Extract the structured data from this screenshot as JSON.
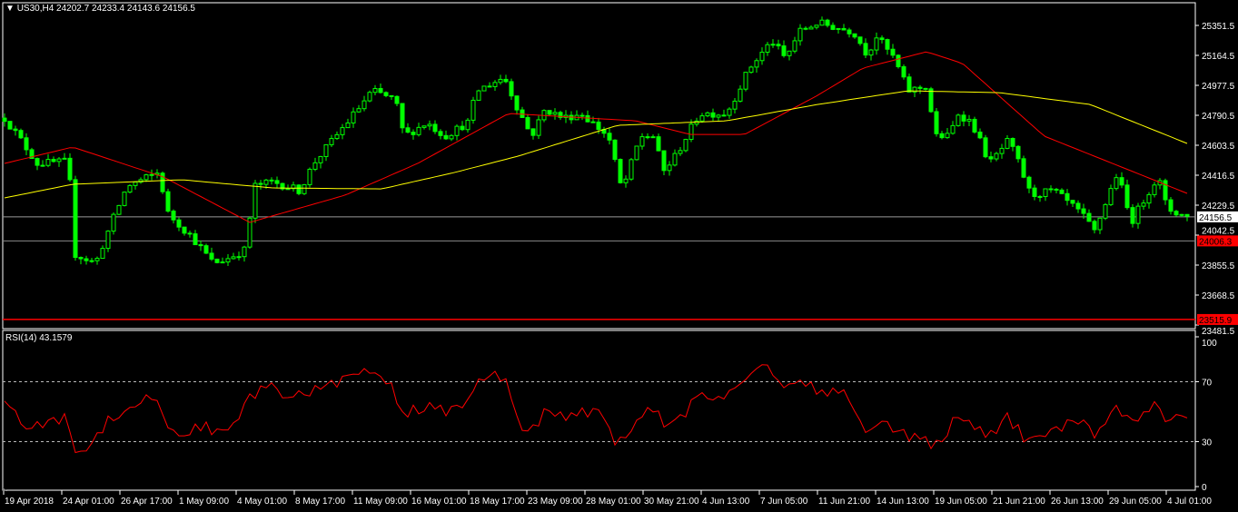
{
  "header": {
    "symbol": "US30,H4",
    "ohlc": "24202.7 24233.4 24143.6 24156.5"
  },
  "rsi_header": {
    "label": "RSI(14) 43.1579"
  },
  "colors": {
    "bull": "#00ff00",
    "bear": "#00ff00",
    "ma_fast": "#ff0000",
    "ma_slow": "#ffff00",
    "rsi": "#ff0000",
    "background": "#000000",
    "grid": "#ffffff"
  },
  "chart_data": [
    {
      "type": "candlestick",
      "symbol": "US30",
      "timeframe": "H4",
      "ylim": [
        23481.5,
        25351.5
      ],
      "y_ticks": [
        "25351.5",
        "25164.5",
        "24977.5",
        "24790.5",
        "24603.5",
        "24416.5",
        "24229.5",
        "24042.5",
        "23855.5",
        "23668.5",
        "23481.5"
      ],
      "x_ticks": [
        "19 Apr 2018",
        "24 Apr 01:00",
        "26 Apr 17:00",
        "1 May 09:00",
        "4 May 01:00",
        "8 May 17:00",
        "11 May 09:00",
        "16 May 01:00",
        "18 May 17:00",
        "23 May 09:00",
        "28 May 01:00",
        "30 May 21:00",
        "4 Jun 13:00",
        "7 Jun 05:00",
        "11 Jun 21:00",
        "14 Jun 13:00",
        "19 Jun 05:00",
        "21 Jun 21:00",
        "26 Jun 13:00",
        "29 Jun 05:00",
        "4 Jul 01:00"
      ],
      "last_price": {
        "value": 24156.5,
        "label": "24156.5"
      },
      "levels": [
        {
          "value": 24006.3,
          "label": "24006.3",
          "color": "#ff0000"
        },
        {
          "value": 23515.9,
          "label": "23515.9",
          "color": "#ff0000"
        }
      ],
      "close_path": [
        [
          0,
          24773
        ],
        [
          2.5,
          24660
        ],
        [
          6,
          24490
        ],
        [
          11.7,
          24501
        ],
        [
          13,
          23923
        ],
        [
          16.7,
          23867
        ],
        [
          20,
          24150
        ],
        [
          22.5,
          24348
        ],
        [
          28.3,
          24433
        ],
        [
          30,
          24178
        ],
        [
          34.2,
          24037
        ],
        [
          38.3,
          23867
        ],
        [
          40.8,
          23895
        ],
        [
          44.2,
          23952
        ],
        [
          45.8,
          24348
        ],
        [
          49.2,
          24376
        ],
        [
          54.2,
          24320
        ],
        [
          56.7,
          24490
        ],
        [
          60.8,
          24660
        ],
        [
          64.2,
          24802
        ],
        [
          67.5,
          24943
        ],
        [
          71.7,
          24887
        ],
        [
          73.3,
          24660
        ],
        [
          77.5,
          24745
        ],
        [
          80.8,
          24660
        ],
        [
          85,
          24745
        ],
        [
          86.7,
          24943
        ],
        [
          91.7,
          25029
        ],
        [
          94.2,
          24830
        ],
        [
          96.7,
          24660
        ],
        [
          99.2,
          24830
        ],
        [
          102.5,
          24773
        ],
        [
          105.8,
          24802
        ],
        [
          110.8,
          24660
        ],
        [
          113.3,
          24320
        ],
        [
          116.7,
          24660
        ],
        [
          119.2,
          24660
        ],
        [
          120.8,
          24433
        ],
        [
          123.3,
          24547
        ],
        [
          127.5,
          24802
        ],
        [
          132.5,
          24802
        ],
        [
          136.7,
          25085
        ],
        [
          140.8,
          25255
        ],
        [
          143.3,
          25142
        ],
        [
          145.8,
          25312
        ],
        [
          149.2,
          25368
        ],
        [
          155.8,
          25312
        ],
        [
          158.3,
          25170
        ],
        [
          160,
          25283
        ],
        [
          163.3,
          25142
        ],
        [
          165.8,
          24943
        ],
        [
          169.2,
          24972
        ],
        [
          170.8,
          24660
        ],
        [
          173.3,
          24660
        ],
        [
          175,
          24802
        ],
        [
          177.5,
          24745
        ],
        [
          180.8,
          24490
        ],
        [
          184.2,
          24632
        ],
        [
          185.8,
          24518
        ],
        [
          188.3,
          24292
        ],
        [
          192.5,
          24320
        ],
        [
          197.5,
          24178
        ],
        [
          200,
          24065
        ],
        [
          204.2,
          24433
        ],
        [
          206.7,
          24122
        ],
        [
          210,
          24320
        ],
        [
          211.7,
          24405
        ],
        [
          213.3,
          24207
        ],
        [
          217,
          24156.5
        ]
      ],
      "series": [
        {
          "name": "MA fast",
          "color": "#ff0000",
          "path": [
            [
              0,
              24490
            ],
            [
              12.5,
              24592
            ],
            [
              29.2,
              24405
            ],
            [
              45,
              24122
            ],
            [
              62.5,
              24292
            ],
            [
              75.8,
              24490
            ],
            [
              92.5,
              24802
            ],
            [
              115.8,
              24756
            ],
            [
              125.8,
              24671
            ],
            [
              135.8,
              24671
            ],
            [
              149.2,
              24915
            ],
            [
              157.5,
              25085
            ],
            [
              169.2,
              25187
            ],
            [
              175.8,
              25114
            ],
            [
              190.8,
              24660
            ],
            [
              207.5,
              24433
            ],
            [
              217,
              24303
            ]
          ]
        },
        {
          "name": "MA slow",
          "color": "#ffff00",
          "path": [
            [
              0,
              24275
            ],
            [
              12.5,
              24360
            ],
            [
              32.5,
              24388
            ],
            [
              49.2,
              24337
            ],
            [
              69.2,
              24331
            ],
            [
              82.5,
              24433
            ],
            [
              94.2,
              24535
            ],
            [
              112.5,
              24728
            ],
            [
              132.5,
              24756
            ],
            [
              149.2,
              24858
            ],
            [
              165.8,
              24943
            ],
            [
              182.5,
              24932
            ],
            [
              199.2,
              24858
            ],
            [
              217,
              24615
            ]
          ]
        }
      ]
    },
    {
      "type": "line",
      "name": "RSI(14)",
      "ylim": [
        0,
        100
      ],
      "y_ticks": [
        "100",
        "70",
        "30",
        "0"
      ],
      "levels": [
        70,
        30
      ],
      "path": [
        [
          0,
          61
        ],
        [
          1.7,
          49
        ],
        [
          5,
          37
        ],
        [
          7.5,
          43
        ],
        [
          11.7,
          46
        ],
        [
          12.8,
          22
        ],
        [
          15.8,
          28
        ],
        [
          19.2,
          46
        ],
        [
          24.2,
          55
        ],
        [
          27.5,
          61
        ],
        [
          30,
          40
        ],
        [
          33.3,
          34
        ],
        [
          36.7,
          43
        ],
        [
          39.2,
          34
        ],
        [
          42.5,
          40
        ],
        [
          45,
          61
        ],
        [
          48.3,
          67
        ],
        [
          52.5,
          58
        ],
        [
          55.8,
          64
        ],
        [
          60.8,
          70
        ],
        [
          65.8,
          76
        ],
        [
          70.8,
          70
        ],
        [
          72.5,
          46
        ],
        [
          77.5,
          55
        ],
        [
          80.8,
          49
        ],
        [
          85,
          55
        ],
        [
          86.7,
          70
        ],
        [
          91.7,
          75
        ],
        [
          93.3,
          52
        ],
        [
          95.8,
          35
        ],
        [
          99.2,
          49
        ],
        [
          102.5,
          46
        ],
        [
          105.8,
          52
        ],
        [
          110,
          46
        ],
        [
          112.5,
          28
        ],
        [
          115.8,
          43
        ],
        [
          119.2,
          52
        ],
        [
          121.7,
          37
        ],
        [
          124.2,
          46
        ],
        [
          127.5,
          61
        ],
        [
          132.5,
          61
        ],
        [
          136.7,
          76
        ],
        [
          140,
          81
        ],
        [
          141.7,
          70
        ],
        [
          145.8,
          70
        ],
        [
          150,
          64
        ],
        [
          154.2,
          61
        ],
        [
          157.5,
          40
        ],
        [
          163.3,
          40
        ],
        [
          165.8,
          34
        ],
        [
          170.8,
          28
        ],
        [
          174.2,
          43
        ],
        [
          177.5,
          40
        ],
        [
          180.8,
          34
        ],
        [
          184.2,
          46
        ],
        [
          188.3,
          28
        ],
        [
          192.5,
          37
        ],
        [
          196.7,
          46
        ],
        [
          200,
          34
        ],
        [
          204.2,
          56
        ],
        [
          206.7,
          40
        ],
        [
          210.8,
          56
        ],
        [
          213.3,
          46
        ],
        [
          217,
          43.16
        ]
      ]
    }
  ]
}
